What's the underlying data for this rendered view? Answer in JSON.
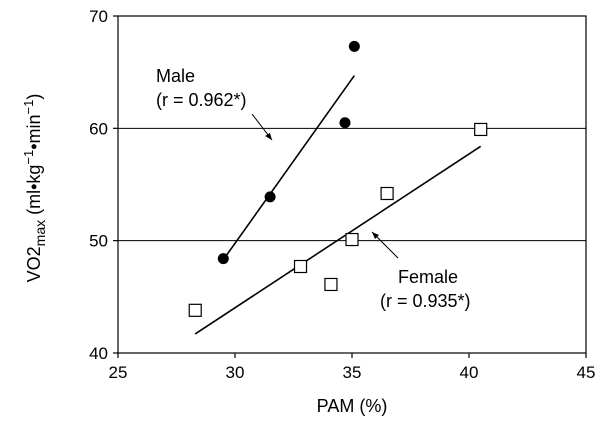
{
  "chart_data": {
    "type": "scatter",
    "xlabel": "PAM (%)",
    "ylabel": {
      "base": "VO2",
      "subscript": "max",
      "units_prefix": " (ml•kg",
      "sup1": "−1",
      "units_mid": "•min",
      "sup2": "−1",
      "units_suffix": ")"
    },
    "xlim": [
      25,
      45
    ],
    "ylim": [
      40,
      70
    ],
    "x_ticks": [
      "25",
      "30",
      "35",
      "40",
      "45"
    ],
    "y_ticks": [
      "40",
      "50",
      "60",
      "70"
    ],
    "gridlines_y": [
      50,
      60
    ],
    "series": [
      {
        "name": "Male",
        "marker": "filled-circle",
        "points": [
          {
            "x": 29.5,
            "y": 48.4
          },
          {
            "x": 31.5,
            "y": 53.9
          },
          {
            "x": 34.7,
            "y": 60.5
          },
          {
            "x": 35.1,
            "y": 67.3
          }
        ],
        "fit_line": [
          {
            "x": 29.5,
            "y": 48.3
          },
          {
            "x": 35.1,
            "y": 64.7
          }
        ],
        "annotation": [
          "Male",
          "(r = 0.962*)"
        ]
      },
      {
        "name": "Female",
        "marker": "open-square",
        "points": [
          {
            "x": 28.3,
            "y": 43.8
          },
          {
            "x": 32.8,
            "y": 47.7
          },
          {
            "x": 34.1,
            "y": 46.1
          },
          {
            "x": 35.0,
            "y": 50.1
          },
          {
            "x": 36.5,
            "y": 54.2
          },
          {
            "x": 40.5,
            "y": 59.9
          }
        ],
        "fit_line": [
          {
            "x": 28.3,
            "y": 41.7
          },
          {
            "x": 40.5,
            "y": 58.4
          }
        ],
        "annotation": [
          "Female",
          "(r = 0.935*)"
        ]
      }
    ]
  }
}
